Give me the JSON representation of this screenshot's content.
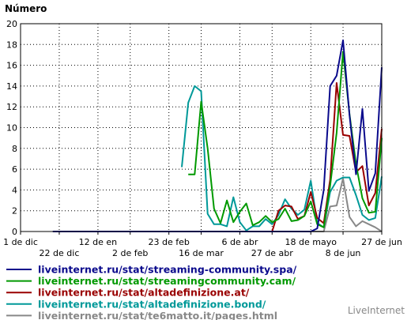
{
  "chart_data": {
    "type": "line",
    "title": "Número",
    "ylim": [
      0,
      20
    ],
    "yticks": [
      0,
      2,
      4,
      6,
      8,
      10,
      12,
      14,
      16,
      18,
      20
    ],
    "x_upper_ticks": [
      {
        "i": 0,
        "label": "1 de dic"
      },
      {
        "i": 12,
        "label": "12 de en"
      },
      {
        "i": 23,
        "label": "23 de feb"
      },
      {
        "i": 34,
        "label": "6 de abr"
      },
      {
        "i": 45,
        "label": "18 de mayo"
      },
      {
        "i": 56,
        "label": "27 de jun"
      }
    ],
    "x_lower_ticks": [
      {
        "i": 6,
        "label": "22 de dic"
      },
      {
        "i": 17,
        "label": "2 de feb"
      },
      {
        "i": 28,
        "label": "16 de mar"
      },
      {
        "i": 39,
        "label": "27 de abr"
      },
      {
        "i": 50,
        "label": "8 de jun"
      }
    ],
    "grid": true,
    "series": [
      {
        "name": "liveinternet.ru/stat/streaming-community.spa/",
        "color": "#0a0a8c",
        "values": [
          0,
          0,
          0,
          0,
          0,
          0,
          0,
          0,
          0,
          0,
          0,
          0,
          0,
          0,
          0,
          0,
          0,
          0,
          0,
          0,
          0,
          0,
          0,
          0,
          0,
          0,
          0,
          0,
          0,
          0,
          0,
          0,
          0,
          0,
          0,
          0,
          0,
          0,
          0,
          0,
          0,
          0.3,
          4,
          14,
          15,
          18.4,
          11.2,
          5.5,
          11.8,
          3.9,
          5.6,
          15.8
        ]
      },
      {
        "name": "liveinternet.ru/stat/streamingcommunity.cam/",
        "color": "#009900",
        "values": [
          5.5,
          5.5,
          12.5,
          8,
          2.2,
          0.8,
          3,
          0.9,
          1.9,
          2.7,
          0.6,
          0.9,
          1.5,
          0.9,
          1.2,
          2.2,
          1,
          1.1,
          1.5,
          2.9,
          0.7,
          0.4,
          4.4,
          9.5,
          17.3,
          11.3,
          6.5,
          3.2,
          1.8,
          1.9,
          9
        ]
      },
      {
        "name": "liveinternet.ru/stat/altadefinizione.at/",
        "color": "#990000",
        "values": [
          0,
          0,
          0,
          0,
          0,
          0,
          0,
          0,
          0,
          0,
          0,
          0,
          0,
          0,
          0,
          0,
          0,
          0,
          0,
          0,
          0,
          0,
          0,
          0,
          0,
          0,
          0,
          0,
          0,
          0,
          0,
          0,
          2,
          2.5,
          2.4,
          1.2,
          1.5,
          3.8,
          1.3,
          0.8,
          5,
          14.3,
          9.3,
          9.2,
          5.7,
          6.3,
          2.5,
          3.7,
          9.9
        ]
      },
      {
        "name": "liveinternet.ru/stat/altadefinizione.bond/",
        "color": "#009999",
        "values": [
          6.2,
          12.4,
          14,
          13.5,
          1.7,
          0.7,
          0.7,
          0.5,
          3.3,
          0.9,
          0.1,
          0.5,
          0.5,
          1.2,
          0.7,
          1.6,
          3.1,
          2.2,
          1.6,
          2.1,
          4.9,
          0.8,
          0.4,
          3.8,
          4.9,
          5.2,
          5.2,
          3.5,
          1.6,
          1.1,
          1.3,
          5.3
        ]
      },
      {
        "name": "liveinternet.ru/stat/te6matto.it/pages.html",
        "color": "#888888",
        "values": [
          0,
          0,
          0,
          0,
          0,
          0,
          0,
          0,
          0,
          0,
          0,
          0,
          0,
          0,
          0,
          0,
          0,
          0,
          0,
          0,
          0,
          0,
          0,
          0,
          0,
          0,
          0,
          0,
          0,
          0,
          0,
          0,
          0,
          0,
          0,
          0,
          0,
          0,
          0,
          0,
          0,
          0,
          0,
          2.4,
          2.5,
          5.1,
          1.4,
          0.5,
          1,
          0.7,
          0.4,
          0
        ]
      }
    ]
  },
  "branding": "LiveInternet"
}
